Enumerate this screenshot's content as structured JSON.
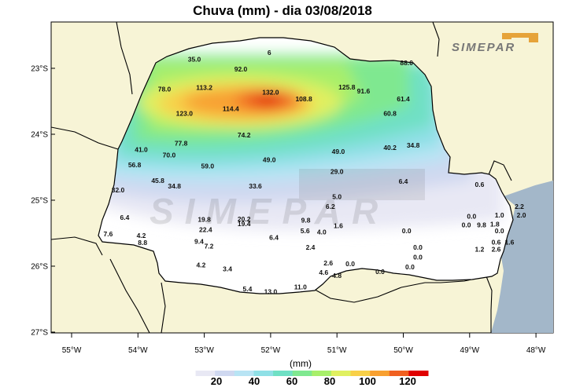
{
  "title": "Chuva (mm) - dia 03/08/2018",
  "logo_text": "SIMEPAR",
  "watermark_text": "SIMEPAR",
  "unit_label": "(mm)",
  "axes": {
    "lat_labels": [
      "23°S",
      "24°S",
      "25°S",
      "26°S",
      "27°S"
    ],
    "lon_labels": [
      "55°W",
      "54°W",
      "53°W",
      "52°W",
      "51°W",
      "50°W",
      "49°W",
      "48°W"
    ]
  },
  "legend": {
    "ticks": [
      "20",
      "40",
      "60",
      "80",
      "100",
      "120"
    ],
    "colors": [
      "#ffffff",
      "#e8e8f4",
      "#cfd8f0",
      "#b8e4f4",
      "#8fe0e6",
      "#6fe0c4",
      "#7fe890",
      "#a8ef6a",
      "#e0f060",
      "#f8d048",
      "#f8a030",
      "#f06020",
      "#e00000"
    ]
  },
  "colors": {
    "land_outside": "#f7f4d6",
    "ocean": "#a3b7c9",
    "state_fill": "#ffffff",
    "border": "#000000"
  },
  "stations": [
    {
      "v": "6",
      "lon": -52.02,
      "lat": -22.8
    },
    {
      "v": "35.0",
      "lon": -53.15,
      "lat": -22.9
    },
    {
      "v": "92.0",
      "lon": -52.45,
      "lat": -23.05
    },
    {
      "v": "88.0",
      "lon": -49.95,
      "lat": -22.95
    },
    {
      "v": "113.2",
      "lon": -53.0,
      "lat": -23.33
    },
    {
      "v": "78.0",
      "lon": -53.6,
      "lat": -23.35
    },
    {
      "v": "132.0",
      "lon": -52.0,
      "lat": -23.4
    },
    {
      "v": "125.8",
      "lon": -50.85,
      "lat": -23.32
    },
    {
      "v": "91.6",
      "lon": -50.6,
      "lat": -23.38
    },
    {
      "v": "108.8",
      "lon": -51.5,
      "lat": -23.5
    },
    {
      "v": "61.4",
      "lon": -50.0,
      "lat": -23.5
    },
    {
      "v": "114.4",
      "lon": -52.6,
      "lat": -23.65
    },
    {
      "v": "123.0",
      "lon": -53.3,
      "lat": -23.72
    },
    {
      "v": "60.8",
      "lon": -50.2,
      "lat": -23.72
    },
    {
      "v": "74.2",
      "lon": -52.4,
      "lat": -24.05
    },
    {
      "v": "77.8",
      "lon": -53.35,
      "lat": -24.17
    },
    {
      "v": "41.0",
      "lon": -53.95,
      "lat": -24.27
    },
    {
      "v": "70.0",
      "lon": -53.53,
      "lat": -24.35
    },
    {
      "v": "40.2",
      "lon": -50.2,
      "lat": -24.24
    },
    {
      "v": "34.8",
      "lon": -49.85,
      "lat": -24.2
    },
    {
      "v": "49.0",
      "lon": -50.98,
      "lat": -24.3
    },
    {
      "v": "49.0",
      "lon": -52.02,
      "lat": -24.42
    },
    {
      "v": "56.8",
      "lon": -54.05,
      "lat": -24.5
    },
    {
      "v": "59.0",
      "lon": -52.95,
      "lat": -24.52
    },
    {
      "v": "29.0",
      "lon": -51.0,
      "lat": -24.6
    },
    {
      "v": "45.8",
      "lon": -53.7,
      "lat": -24.74
    },
    {
      "v": "34.8",
      "lon": -53.45,
      "lat": -24.82
    },
    {
      "v": "32.0",
      "lon": -54.3,
      "lat": -24.88
    },
    {
      "v": "33.6",
      "lon": -52.23,
      "lat": -24.82
    },
    {
      "v": "6.4",
      "lon": -50.0,
      "lat": -24.75
    },
    {
      "v": "0.6",
      "lon": -48.85,
      "lat": -24.8
    },
    {
      "v": "5.0",
      "lon": -51.0,
      "lat": -24.98
    },
    {
      "v": "6.2",
      "lon": -51.1,
      "lat": -25.13
    },
    {
      "v": "2.2",
      "lon": -48.25,
      "lat": -25.13
    },
    {
      "v": "6.4",
      "lon": -54.2,
      "lat": -25.3
    },
    {
      "v": "19.8",
      "lon": -53.0,
      "lat": -25.33
    },
    {
      "v": "20.2",
      "lon": -52.4,
      "lat": -25.32
    },
    {
      "v": "19.4",
      "lon": -52.4,
      "lat": -25.39
    },
    {
      "v": "9.8",
      "lon": -51.47,
      "lat": -25.34
    },
    {
      "v": "0.0",
      "lon": -48.97,
      "lat": -25.28
    },
    {
      "v": "1.0",
      "lon": -48.55,
      "lat": -25.26
    },
    {
      "v": "2.0",
      "lon": -48.22,
      "lat": -25.26
    },
    {
      "v": "1.6",
      "lon": -50.98,
      "lat": -25.42
    },
    {
      "v": "0.0",
      "lon": -49.05,
      "lat": -25.41
    },
    {
      "v": "9.8",
      "lon": -48.82,
      "lat": -25.41
    },
    {
      "v": "1.8",
      "lon": -48.62,
      "lat": -25.4
    },
    {
      "v": "22.4",
      "lon": -52.98,
      "lat": -25.48
    },
    {
      "v": "5.6",
      "lon": -51.48,
      "lat": -25.5
    },
    {
      "v": "4.0",
      "lon": -51.23,
      "lat": -25.52
    },
    {
      "v": "0.0",
      "lon": -49.95,
      "lat": -25.5
    },
    {
      "v": "0.0",
      "lon": -48.55,
      "lat": -25.5
    },
    {
      "v": "7.6",
      "lon": -54.45,
      "lat": -25.55
    },
    {
      "v": "4.2",
      "lon": -53.95,
      "lat": -25.57
    },
    {
      "v": "6.4",
      "lon": -51.95,
      "lat": -25.6
    },
    {
      "v": "8.8",
      "lon": -53.93,
      "lat": -25.68
    },
    {
      "v": "9.4",
      "lon": -53.08,
      "lat": -25.66
    },
    {
      "v": "7.2",
      "lon": -52.93,
      "lat": -25.73
    },
    {
      "v": "0.6",
      "lon": -48.6,
      "lat": -25.67
    },
    {
      "v": "1.6",
      "lon": -48.4,
      "lat": -25.67
    },
    {
      "v": "2.4",
      "lon": -51.4,
      "lat": -25.75
    },
    {
      "v": "0.0",
      "lon": -49.78,
      "lat": -25.75
    },
    {
      "v": "1.2",
      "lon": -48.85,
      "lat": -25.78
    },
    {
      "v": "2.6",
      "lon": -48.6,
      "lat": -25.78
    },
    {
      "v": "0.0",
      "lon": -49.78,
      "lat": -25.9
    },
    {
      "v": "4.2",
      "lon": -53.05,
      "lat": -26.02
    },
    {
      "v": "3.4",
      "lon": -52.65,
      "lat": -26.08
    },
    {
      "v": "2.6",
      "lon": -51.13,
      "lat": -25.99
    },
    {
      "v": "0.0",
      "lon": -50.8,
      "lat": -26.0
    },
    {
      "v": "0.0",
      "lon": -49.9,
      "lat": -26.05
    },
    {
      "v": "4.6",
      "lon": -51.2,
      "lat": -26.13
    },
    {
      "v": "4.8",
      "lon": -51.0,
      "lat": -26.18
    },
    {
      "v": "0.0",
      "lon": -50.35,
      "lat": -26.12
    },
    {
      "v": "5.4",
      "lon": -52.35,
      "lat": -26.38
    },
    {
      "v": "13.0",
      "lon": -52.0,
      "lat": -26.42
    },
    {
      "v": "11.0",
      "lon": -51.55,
      "lat": -26.35
    }
  ]
}
